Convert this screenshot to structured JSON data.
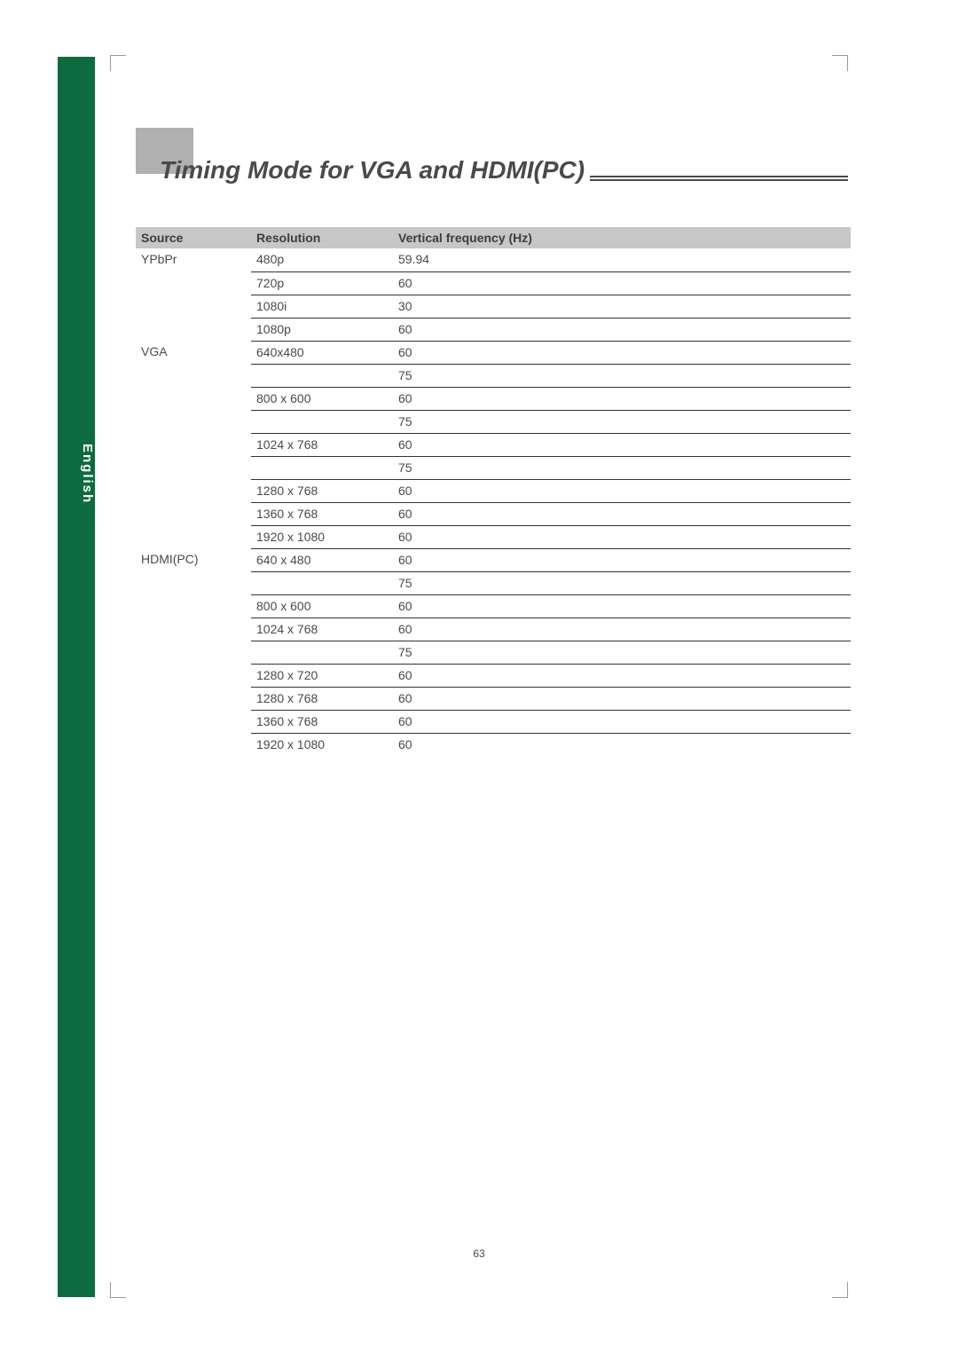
{
  "colors": {
    "green_bar": "#0d6b3f",
    "title_block": "#b0b0b0",
    "header_bg": "#c7c7c7",
    "text": "#4a4a4a",
    "rule": "#333333",
    "page_bg": "#ffffff"
  },
  "language_label": "English",
  "title": "Timing Mode for VGA and HDMI(PC)",
  "page_number": "63",
  "table": {
    "columns": [
      "Source",
      "Resolution",
      "Vertical frequency (Hz)"
    ],
    "rows": [
      {
        "source": "YPbPr",
        "resolution": "480p",
        "freq": "59.94",
        "last_in_group": false
      },
      {
        "source": "",
        "resolution": "720p",
        "freq": "60",
        "last_in_group": false
      },
      {
        "source": "",
        "resolution": "1080i",
        "freq": "30",
        "last_in_group": false
      },
      {
        "source": "",
        "resolution": "1080p",
        "freq": "60",
        "last_in_group": false
      },
      {
        "source": "VGA",
        "resolution": "640x480",
        "freq": "60",
        "last_in_group": false
      },
      {
        "source": "",
        "resolution": "",
        "freq": "75",
        "last_in_group": false
      },
      {
        "source": "",
        "resolution": "800 x 600",
        "freq": "60",
        "last_in_group": false
      },
      {
        "source": "",
        "resolution": "",
        "freq": "75",
        "last_in_group": false
      },
      {
        "source": "",
        "resolution": "1024 x 768",
        "freq": "60",
        "last_in_group": false
      },
      {
        "source": "",
        "resolution": "",
        "freq": "75",
        "last_in_group": false
      },
      {
        "source": "",
        "resolution": "1280 x 768",
        "freq": "60",
        "last_in_group": false
      },
      {
        "source": "",
        "resolution": "1360 x 768",
        "freq": "60",
        "last_in_group": false
      },
      {
        "source": "",
        "resolution": "1920 x 1080",
        "freq": "60",
        "last_in_group": false
      },
      {
        "source": "HDMI(PC)",
        "resolution": "640 x 480",
        "freq": "60",
        "last_in_group": false
      },
      {
        "source": "",
        "resolution": "",
        "freq": "75",
        "last_in_group": false
      },
      {
        "source": "",
        "resolution": "800 x 600",
        "freq": "60",
        "last_in_group": false
      },
      {
        "source": "",
        "resolution": "1024 x 768",
        "freq": "60",
        "last_in_group": false
      },
      {
        "source": "",
        "resolution": "",
        "freq": "75",
        "last_in_group": false
      },
      {
        "source": "",
        "resolution": "1280 x 720",
        "freq": "60",
        "last_in_group": false
      },
      {
        "source": "",
        "resolution": "1280 x 768",
        "freq": "60",
        "last_in_group": false
      },
      {
        "source": "",
        "resolution": "1360 x 768",
        "freq": "60",
        "last_in_group": false
      },
      {
        "source": "",
        "resolution": "1920 x 1080",
        "freq": "60",
        "last_in_group": true
      }
    ]
  }
}
